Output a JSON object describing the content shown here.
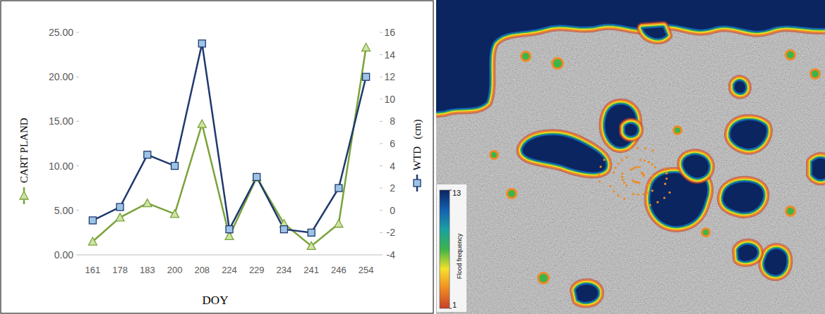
{
  "chart_data": [
    {
      "type": "line",
      "x_label": "DOY",
      "categories": [
        "161",
        "178",
        "183",
        "200",
        "208",
        "224",
        "229",
        "234",
        "241",
        "246",
        "254"
      ],
      "series": [
        {
          "name": "CART PLAND",
          "color": "#7aa33a",
          "marker": "triangle",
          "values": [
            1.5,
            4.2,
            5.8,
            4.6,
            14.7,
            2.1,
            8.7,
            3.5,
            1.0,
            3.5,
            23.3
          ]
        },
        {
          "name": "WTD",
          "color": "#1f3a6e",
          "marker": "square",
          "axis": "y2",
          "values": [
            -0.9,
            0.3,
            5.0,
            4.0,
            15.0,
            -1.7,
            3.0,
            -1.7,
            -2.0,
            2.0,
            12.0
          ]
        }
      ],
      "ylim": [
        0,
        25
      ],
      "yticks": [
        {
          "value": 0,
          "label": "0.00"
        },
        {
          "value": 5,
          "label": "5.00"
        },
        {
          "value": 10,
          "label": "10.00"
        },
        {
          "value": 15,
          "label": "15.00"
        },
        {
          "value": 20,
          "label": "20.00"
        },
        {
          "value": 25,
          "label": "25.00"
        }
      ],
      "y2lim": [
        -4,
        16
      ],
      "y2ticks": [
        -4,
        -2,
        0,
        2,
        4,
        6,
        8,
        10,
        12,
        14,
        16
      ],
      "y2_label": "(cm)",
      "legend": "axes",
      "grid": false
    },
    {
      "type": "map",
      "colorbar": {
        "label": "Flood frequency",
        "range": [
          1,
          13
        ],
        "ticks": [
          1,
          13
        ],
        "colors": [
          "#c8402a",
          "#f08a24",
          "#f5e12a",
          "#3cb44a",
          "#1aa0a0",
          "#1560b0",
          "#0a2560"
        ]
      }
    }
  ]
}
